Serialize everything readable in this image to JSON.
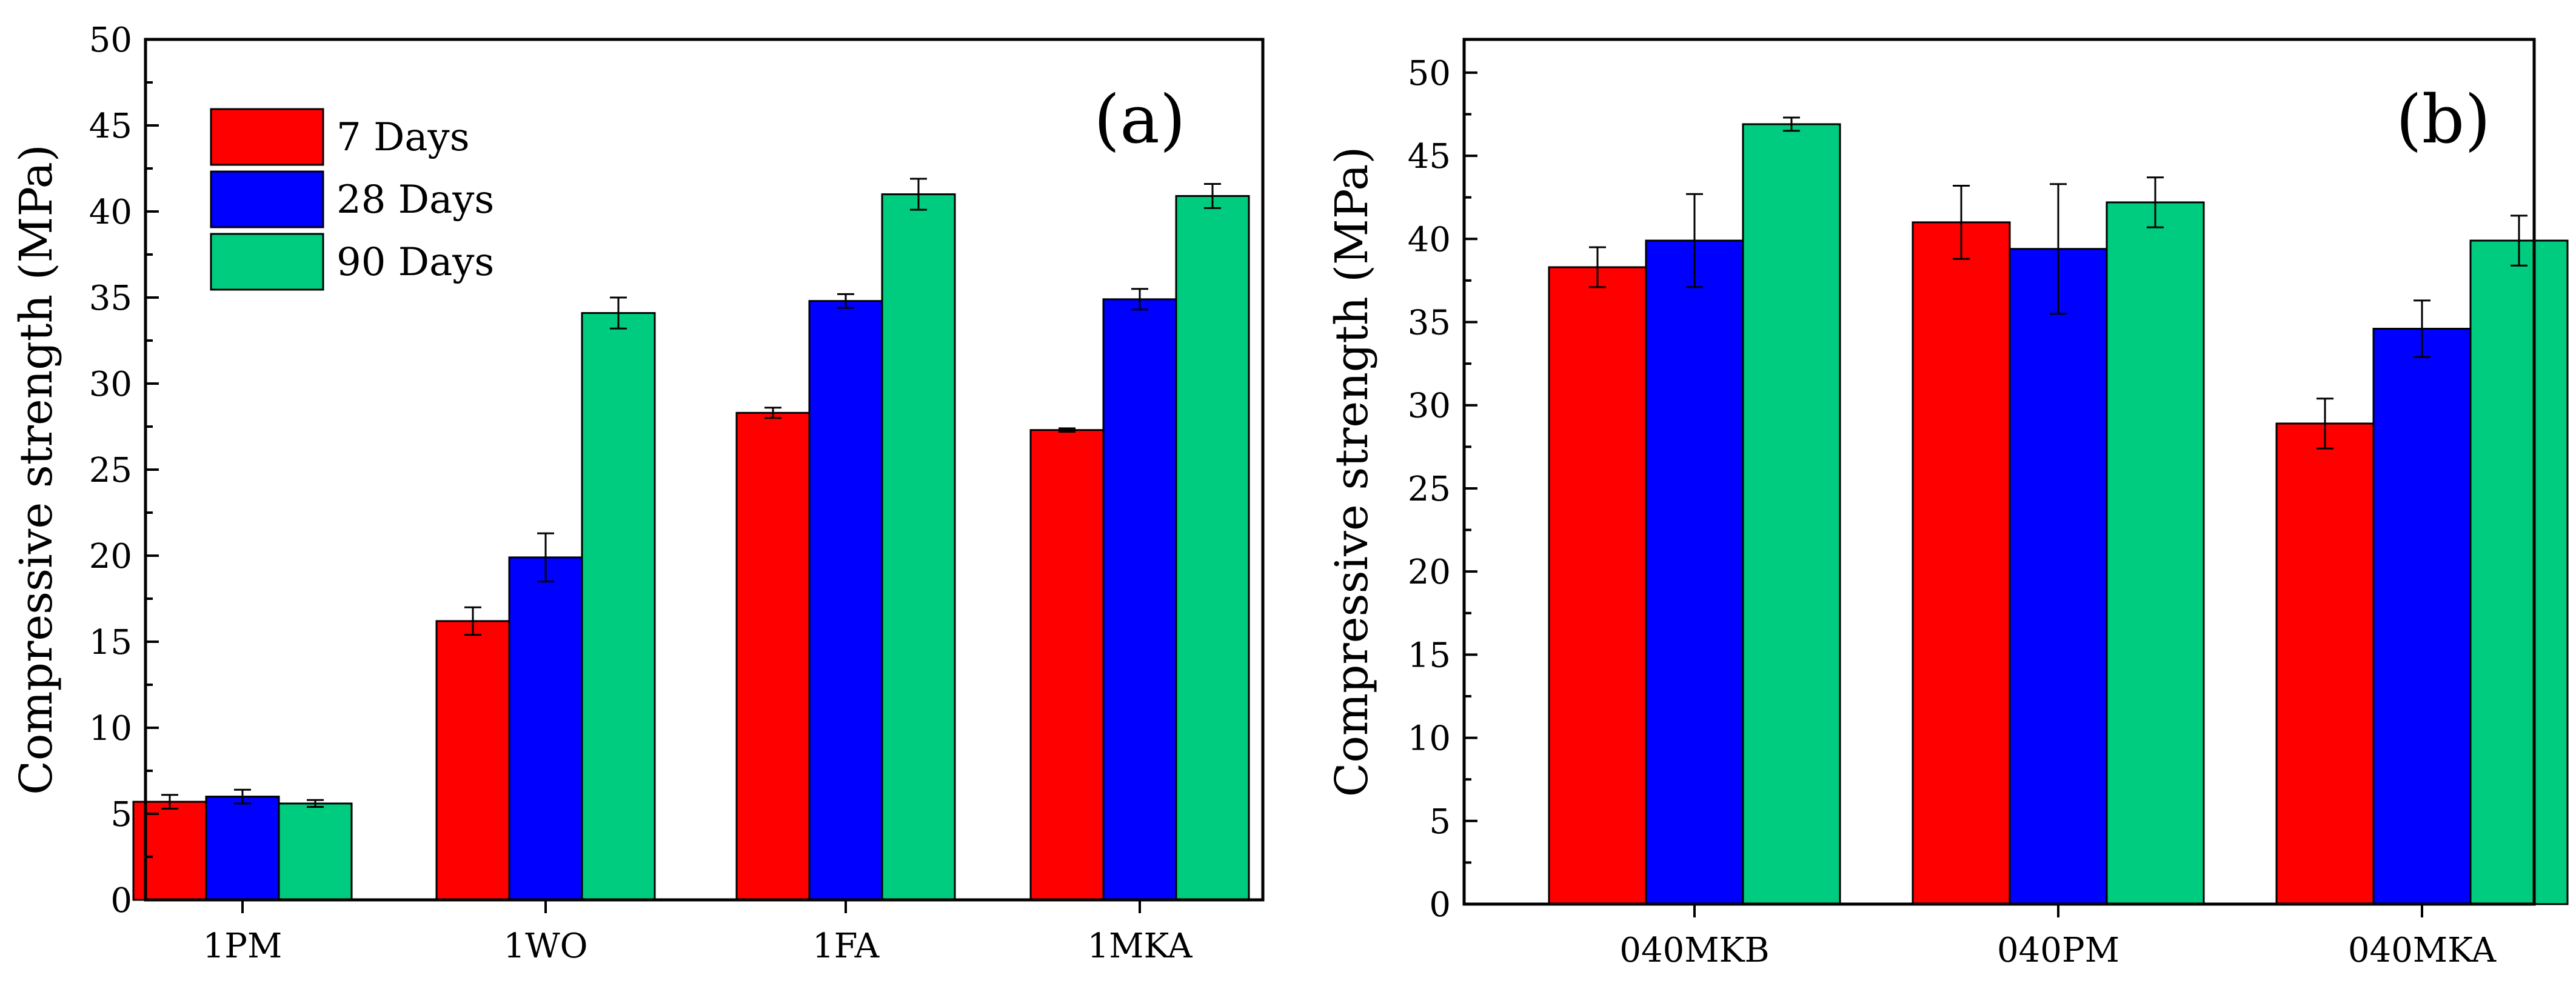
{
  "chart_data": [
    {
      "type": "bar",
      "panel_label": "(a)",
      "ylabel": "Compressive strength (MPa)",
      "xlabel": "",
      "ylim": [
        0,
        50
      ],
      "yticks": [
        "0",
        "5",
        "10",
        "15",
        "20",
        "25",
        "30",
        "35",
        "40",
        "45",
        "50"
      ],
      "categories": [
        "1PM",
        "1WO",
        "1FA",
        "1MKA"
      ],
      "legend_position": "top-left",
      "series": [
        {
          "name": "7 Days",
          "color": "#ff0000",
          "values": [
            5.7,
            16.2,
            28.3,
            27.3
          ],
          "errors": [
            0.4,
            0.8,
            0.3,
            0.1
          ]
        },
        {
          "name": "28 Days",
          "color": "#0000ff",
          "values": [
            6.0,
            19.9,
            34.8,
            34.9
          ],
          "errors": [
            0.4,
            1.4,
            0.4,
            0.6
          ]
        },
        {
          "name": "90 Days",
          "color": "#00cc80",
          "values": [
            5.6,
            34.1,
            41.0,
            40.9
          ],
          "errors": [
            0.2,
            0.9,
            0.9,
            0.7
          ]
        }
      ]
    },
    {
      "type": "bar",
      "panel_label": "(b)",
      "ylabel": "Compressive strength (MPa)",
      "xlabel": "",
      "ylim": [
        0,
        52
      ],
      "yticks": [
        "0",
        "5",
        "10",
        "15",
        "20",
        "25",
        "30",
        "35",
        "40",
        "45",
        "50"
      ],
      "categories": [
        "040MKB",
        "040PM",
        "040MKA"
      ],
      "series": [
        {
          "name": "7 Days",
          "color": "#ff0000",
          "values": [
            38.3,
            41.0,
            28.9
          ],
          "errors": [
            1.2,
            2.2,
            1.5
          ]
        },
        {
          "name": "28 Days",
          "color": "#0000ff",
          "values": [
            39.9,
            39.4,
            34.6
          ],
          "errors": [
            2.8,
            3.9,
            1.7
          ]
        },
        {
          "name": "90 Days",
          "color": "#00cc80",
          "values": [
            46.9,
            42.2,
            39.9
          ],
          "errors": [
            0.4,
            1.5,
            1.5
          ]
        }
      ]
    }
  ]
}
